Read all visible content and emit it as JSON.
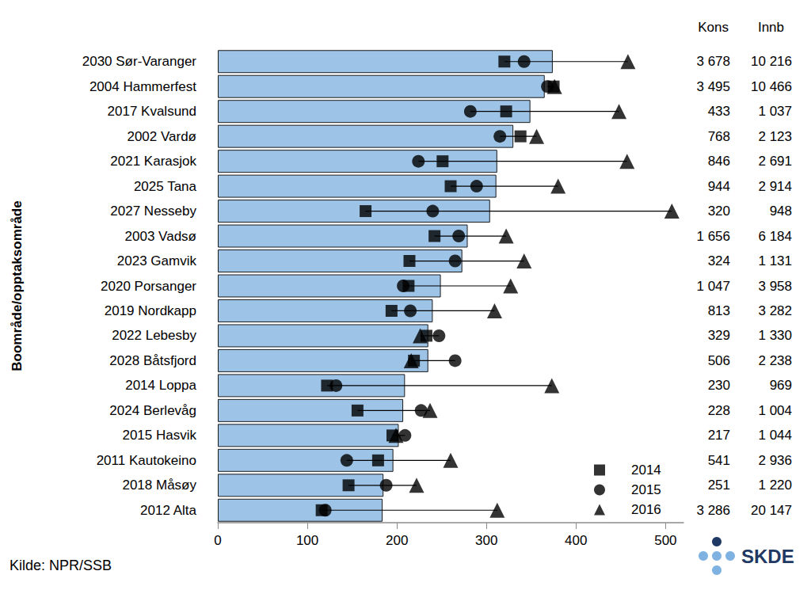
{
  "chart_data": {
    "type": "bar",
    "orientation": "horizontal",
    "ylabel": "Boområde/opptaksområde",
    "categories": [
      "2030 Sør-Varanger",
      "2004 Hammerfest",
      "2017 Kvalsund",
      "2002 Vardø",
      "2021 Karasjok",
      "2025 Tana",
      "2027 Nesseby",
      "2003 Vadsø",
      "2023 Gamvik",
      "2020 Porsanger",
      "2019 Nordkapp",
      "2022 Lebesby",
      "2028 Båtsfjord",
      "2014 Loppa",
      "2024 Berlevåg",
      "2015 Hasvik",
      "2011 Kautokeino",
      "2018 Måsøy",
      "2012 Alta"
    ],
    "values": [
      374,
      365,
      349,
      330,
      312,
      311,
      304,
      279,
      273,
      249,
      240,
      235,
      235,
      209,
      207,
      202,
      196,
      185,
      184
    ],
    "color": "#9dc3e6",
    "series": [
      {
        "name": "2014",
        "type": "scatter",
        "marker": "square",
        "color": "#000000",
        "values": [
          320,
          375,
          322,
          338,
          251,
          260,
          165,
          242,
          214,
          213,
          194,
          233,
          219,
          122,
          156,
          195,
          179,
          146,
          116
        ]
      },
      {
        "name": "2015",
        "type": "scatter",
        "marker": "circle",
        "color": "#000000",
        "values": [
          342,
          368,
          282,
          315,
          224,
          289,
          240,
          269,
          265,
          207,
          215,
          247,
          265,
          132,
          227,
          209,
          144,
          188,
          120
        ]
      },
      {
        "name": "2016",
        "type": "scatter",
        "marker": "triangle",
        "color": "#000000",
        "values": [
          458,
          376,
          448,
          356,
          457,
          380,
          507,
          322,
          342,
          327,
          309,
          226,
          216,
          373,
          237,
          199,
          260,
          222,
          312
        ]
      }
    ],
    "columns": [
      {
        "header": "Kons",
        "labels": [
          "3 678",
          "3 495",
          "433",
          "768",
          "846",
          "944",
          "320",
          "1 656",
          "324",
          "1 047",
          "813",
          "329",
          "506",
          "230",
          "228",
          "217",
          "541",
          "251",
          "3 286"
        ]
      },
      {
        "header": "Innb",
        "labels": [
          "10 216",
          "10 466",
          "1 037",
          "2 123",
          "2 691",
          "2 914",
          "948",
          "6 184",
          "1 131",
          "3 958",
          "3 282",
          "1 330",
          "2 238",
          "969",
          "1 004",
          "1 044",
          "2 936",
          "1 220",
          "20 147"
        ]
      }
    ],
    "xlim": [
      0,
      520
    ],
    "xticks": [
      0,
      100,
      200,
      300,
      400,
      500
    ],
    "grid": false,
    "legend": "lower right",
    "source": "Kilde: NPR/SSB",
    "logo": "SKDE"
  }
}
